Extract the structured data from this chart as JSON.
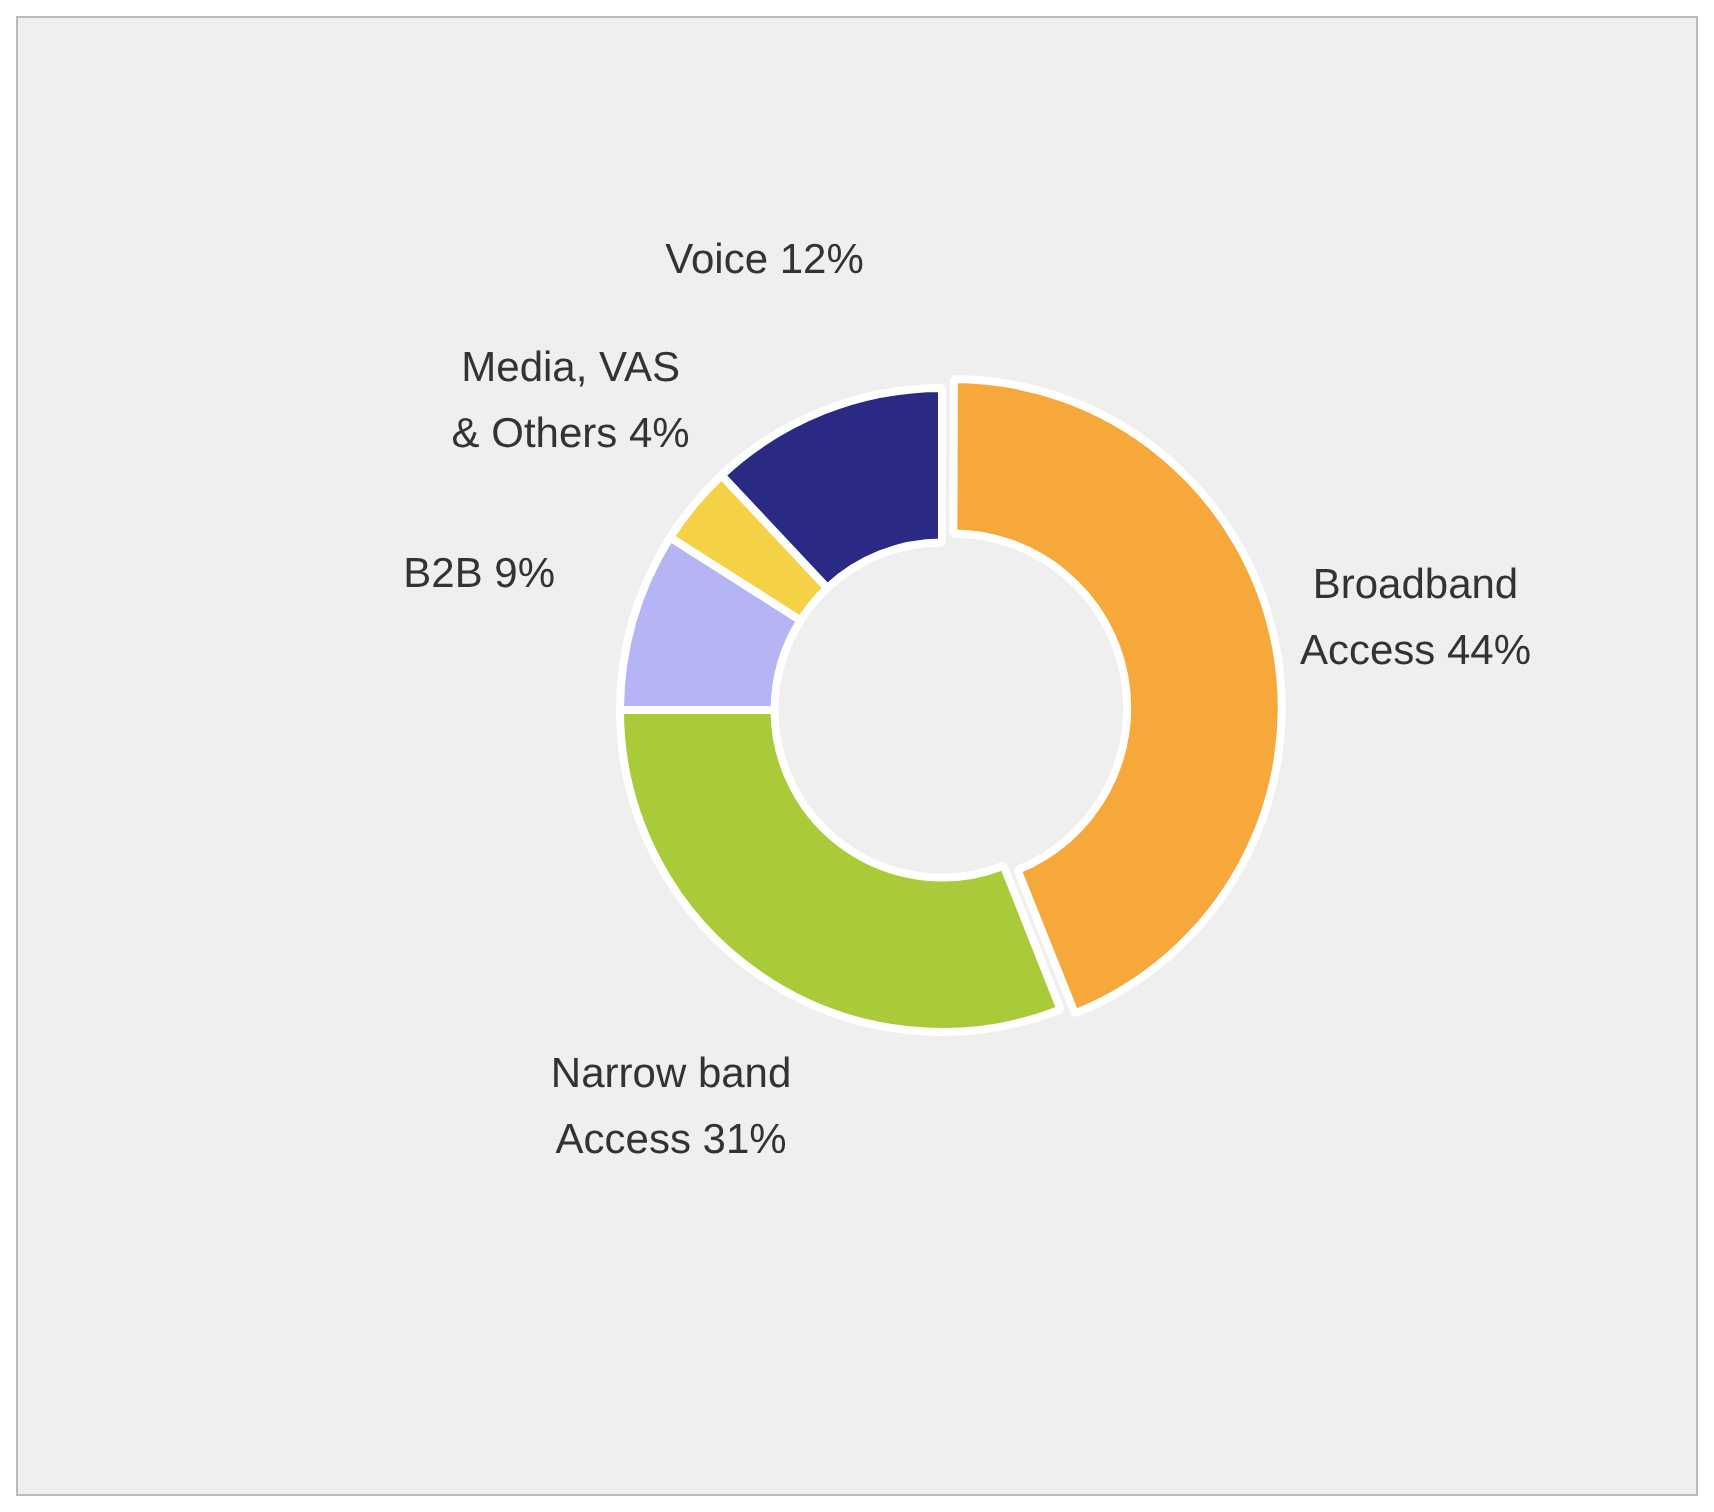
{
  "chart_data": {
    "type": "donut",
    "categories": [
      "Broadband Access",
      "Narrow band Access",
      "B2B",
      "Media, VAS & Others",
      "Voice"
    ],
    "values": [
      44,
      31,
      9,
      4,
      12
    ],
    "value_labels": [
      "44%",
      "31%",
      "9%",
      "4%",
      "12%"
    ],
    "colors": [
      "#f7a83a",
      "#a9cb3a",
      "#b5b5f5",
      "#f5d245",
      "#2a2a85"
    ],
    "legend": false
  }
}
